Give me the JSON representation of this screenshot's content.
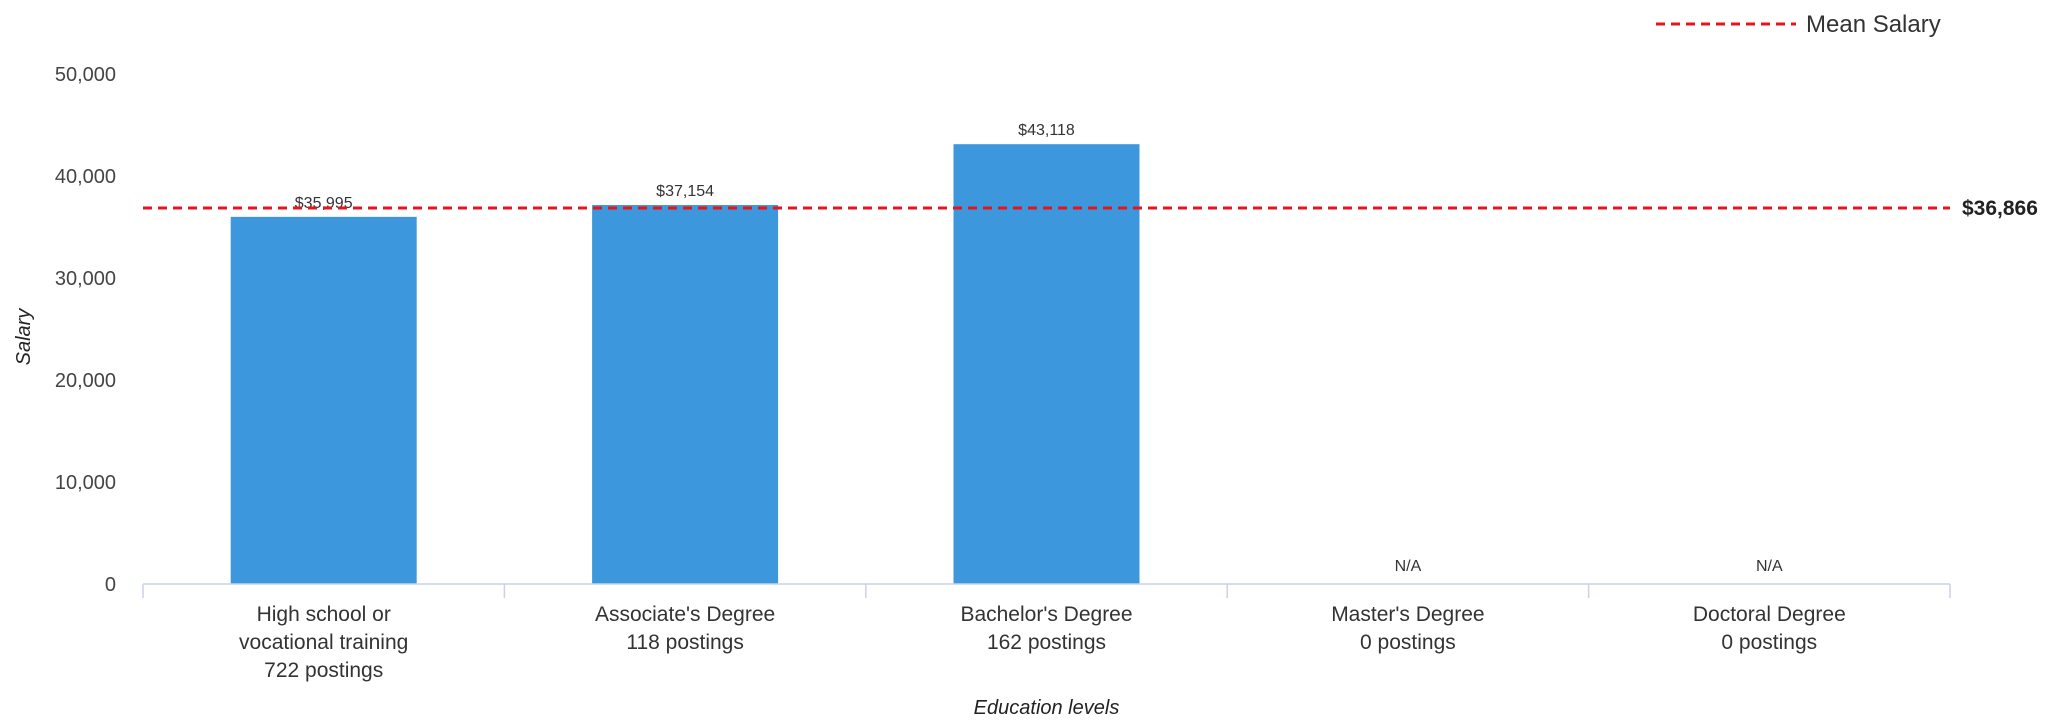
{
  "chart_data": {
    "type": "bar",
    "title": "",
    "xlabel": "Education levels",
    "ylabel": "Salary",
    "ylim": [
      0,
      50000
    ],
    "y_ticks": [
      "0",
      "10,000",
      "20,000",
      "30,000",
      "40,000",
      "50,000"
    ],
    "y_tick_values": [
      0,
      10000,
      20000,
      30000,
      40000,
      50000
    ],
    "grid": false,
    "bar_color": "#3d97dc",
    "categories": [
      {
        "lines": [
          "High school or",
          "vocational training",
          "722 postings"
        ],
        "value": 35995,
        "label": "$35,995"
      },
      {
        "lines": [
          "Associate's Degree",
          "118 postings"
        ],
        "value": 37154,
        "label": "$37,154"
      },
      {
        "lines": [
          "Bachelor's Degree",
          "162 postings"
        ],
        "value": 43118,
        "label": "$43,118"
      },
      {
        "lines": [
          "Master's Degree",
          "0 postings"
        ],
        "value": null,
        "label": "N/A"
      },
      {
        "lines": [
          "Doctoral Degree",
          "0 postings"
        ],
        "value": null,
        "label": "N/A"
      }
    ],
    "mean_line": {
      "value": 36866,
      "label": "$36,866",
      "color": "#e8141c",
      "style": "dashed"
    },
    "legend": {
      "position": "top-right",
      "entries": [
        {
          "name": "Mean Salary",
          "color": "#e8141c",
          "style": "dashed"
        }
      ]
    }
  }
}
